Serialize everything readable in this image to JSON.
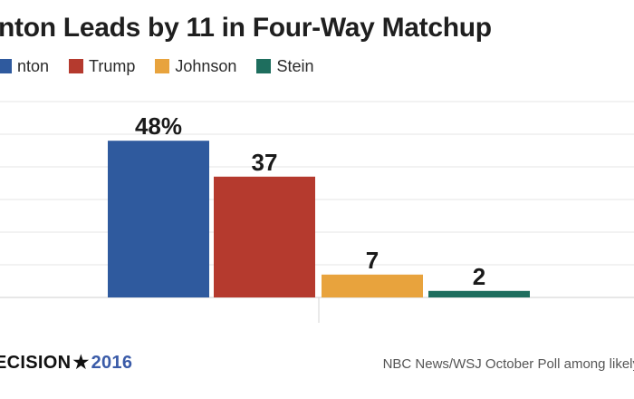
{
  "chart_data": {
    "type": "bar",
    "title": "nton Leads by 11 in Four-Way Matchup",
    "categories": [
      "nton",
      "Trump",
      "Johnson",
      "Stein"
    ],
    "values": [
      48,
      37,
      7,
      2
    ],
    "data_labels": [
      "48%",
      "37",
      "7",
      "2"
    ],
    "colors": [
      "#2f5a9e",
      "#b53a2e",
      "#e8a33d",
      "#1e6e5e"
    ],
    "ylim": [
      0,
      60
    ],
    "grid": true,
    "legend": "top-left"
  },
  "footer": {
    "brand": "ECISION",
    "star": "★",
    "year": "2016",
    "source": "NBC News/WSJ October Poll among likely"
  }
}
